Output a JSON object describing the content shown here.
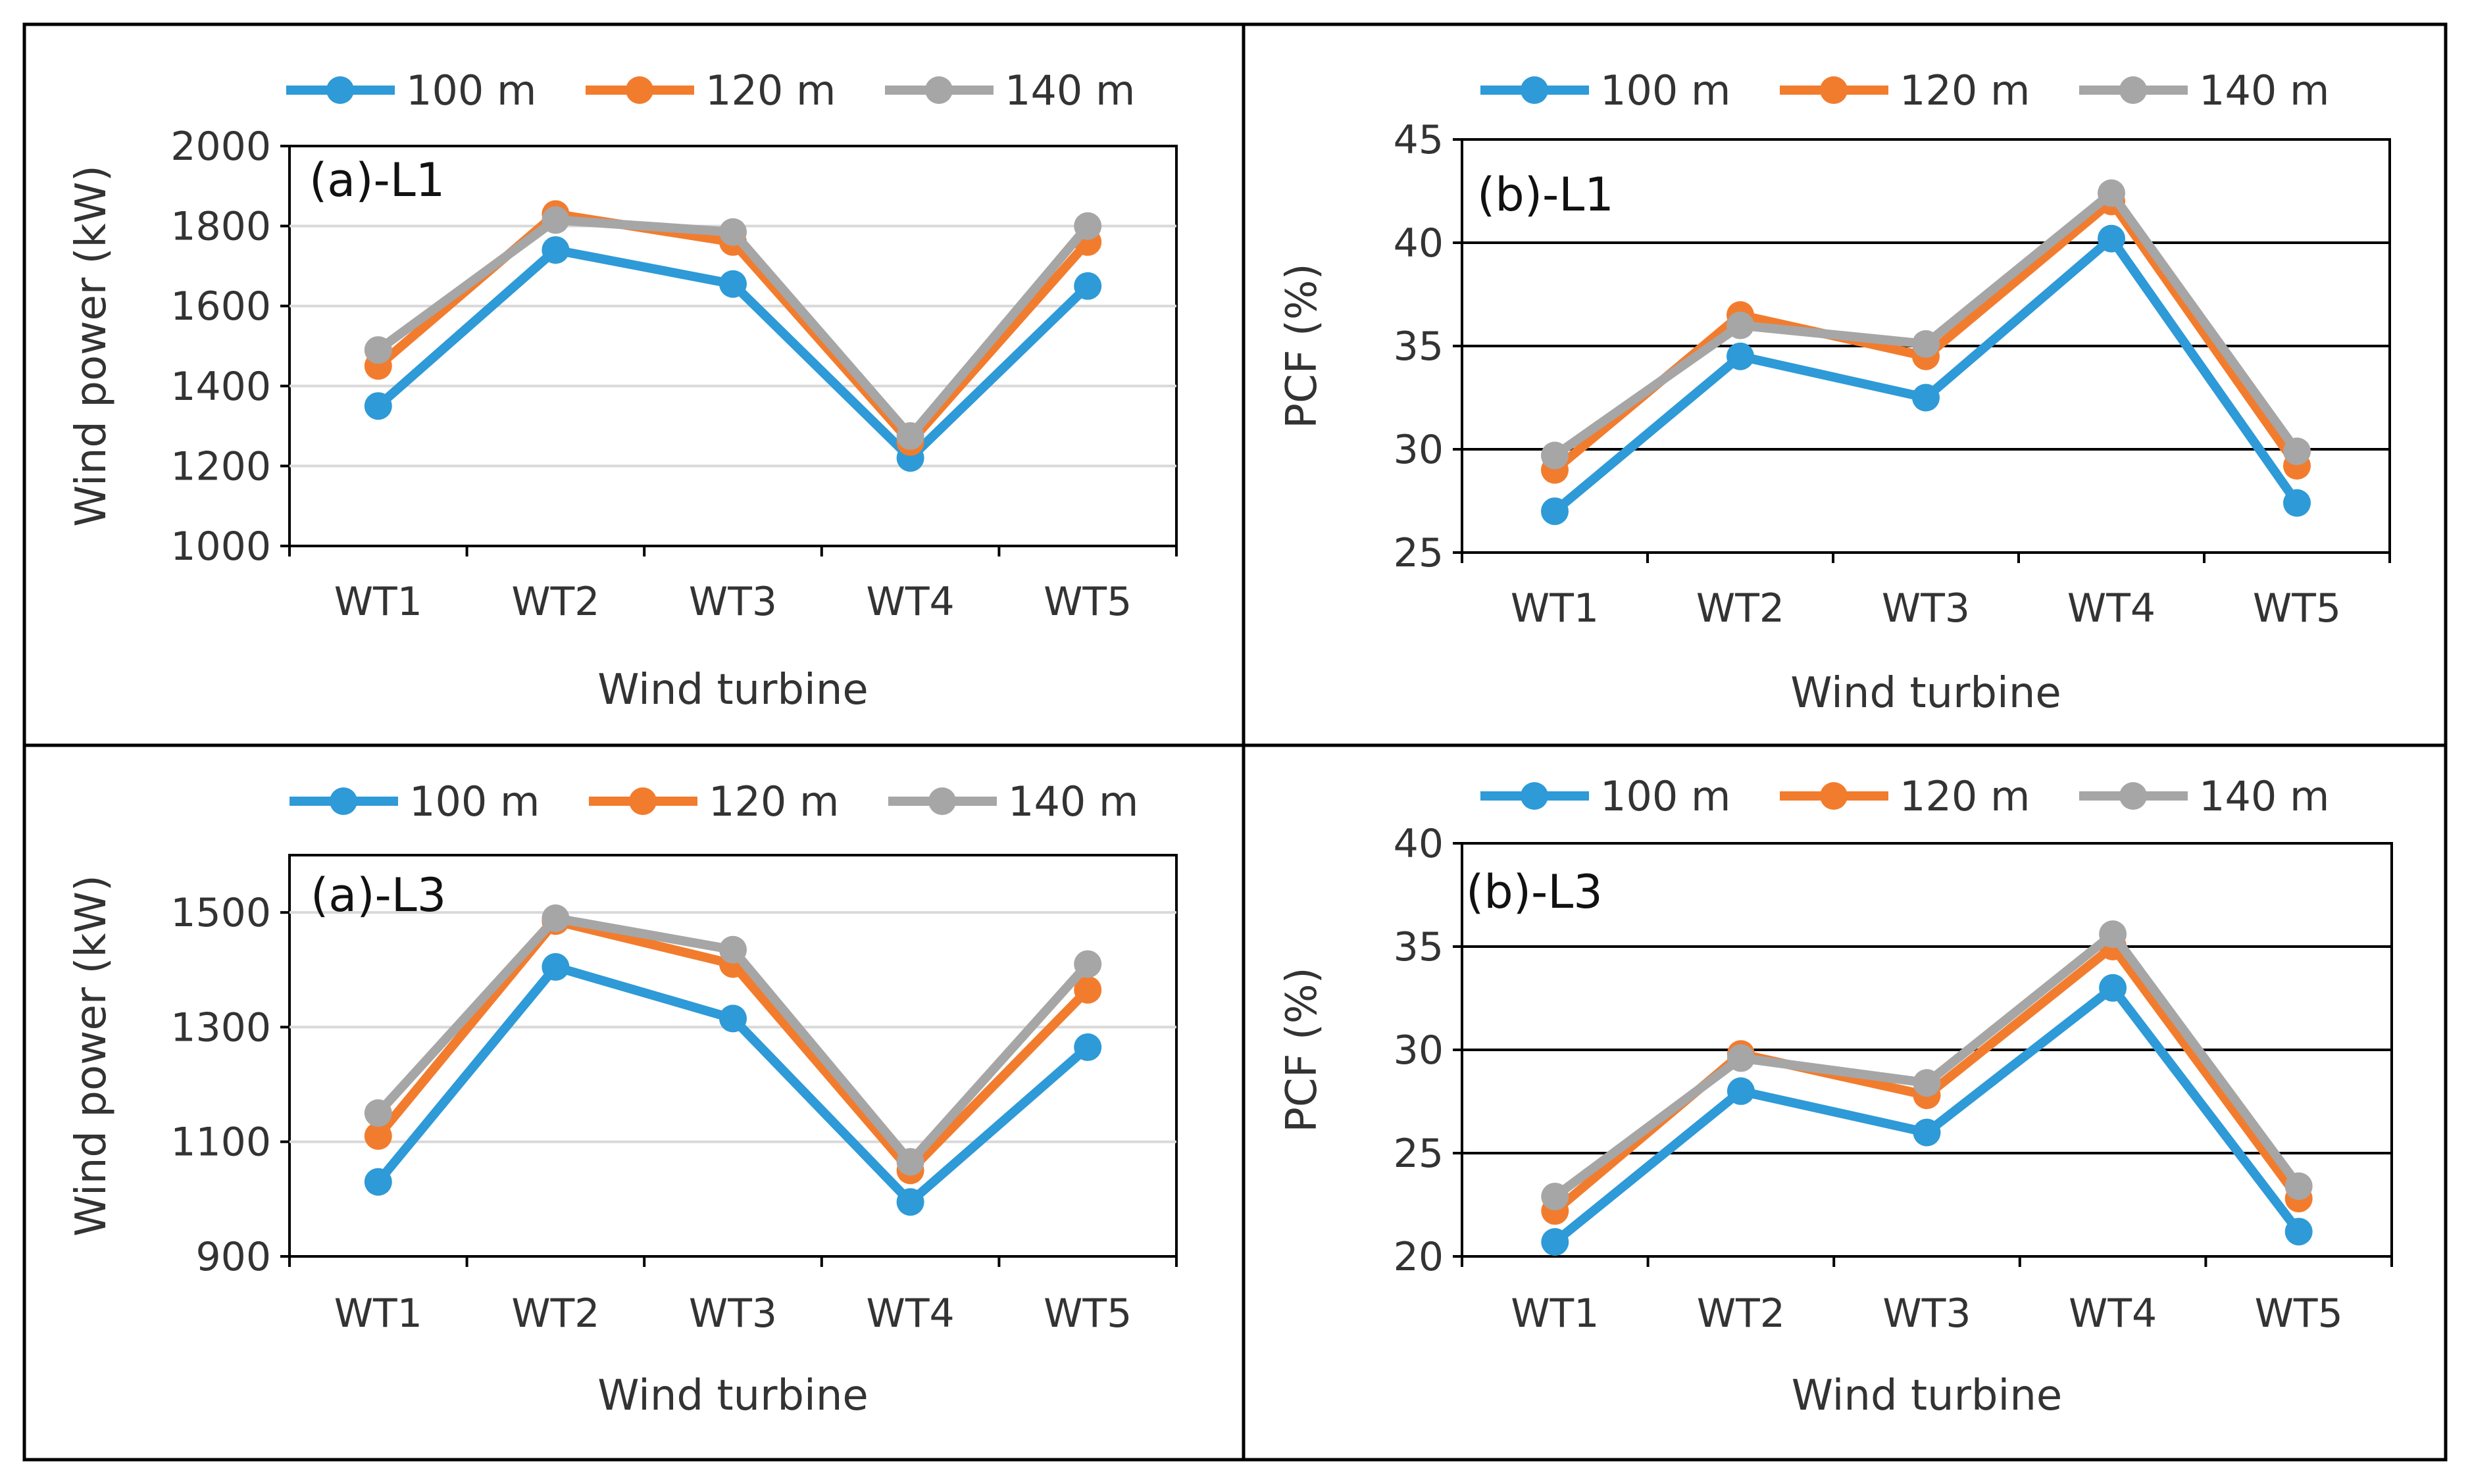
{
  "colors": {
    "s100": "#2E9AD7",
    "s120": "#F27C2E",
    "s140": "#A6A6A6"
  },
  "chart_data": [
    {
      "id": "a-L1",
      "type": "line",
      "panel_label": "(a)-L1",
      "categories": [
        "WT1",
        "WT2",
        "WT3",
        "WT4",
        "WT5"
      ],
      "xlabel": "Wind turbine",
      "ylabel": "Wind power (kW)",
      "ylim": [
        1000,
        2000
      ],
      "yticks": [
        1000,
        1200,
        1400,
        1600,
        1800,
        2000
      ],
      "grid": "silver",
      "legend": "top",
      "series": [
        {
          "name": "100 m",
          "values": [
            1350,
            1740,
            1655,
            1220,
            1650
          ]
        },
        {
          "name": "120 m",
          "values": [
            1450,
            1830,
            1760,
            1260,
            1760
          ]
        },
        {
          "name": "140 m",
          "values": [
            1490,
            1815,
            1785,
            1275,
            1800
          ]
        }
      ]
    },
    {
      "id": "b-L1",
      "type": "line",
      "panel_label": "(b)-L1",
      "categories": [
        "WT1",
        "WT2",
        "WT3",
        "WT4",
        "WT5"
      ],
      "xlabel": "Wind turbine",
      "ylabel": "PCF (%)",
      "ylim": [
        25,
        45
      ],
      "yticks": [
        25,
        30,
        35,
        40,
        45
      ],
      "grid": "black",
      "legend": "top",
      "series": [
        {
          "name": "100 m",
          "values": [
            27.0,
            34.5,
            32.5,
            40.2,
            27.4
          ]
        },
        {
          "name": "120 m",
          "values": [
            29.0,
            36.5,
            34.5,
            42.0,
            29.2
          ]
        },
        {
          "name": "140 m",
          "values": [
            29.7,
            36.0,
            35.1,
            42.4,
            29.9
          ]
        }
      ]
    },
    {
      "id": "a-L3",
      "type": "line",
      "panel_label": "(a)-L3",
      "categories": [
        "WT1",
        "WT2",
        "WT3",
        "WT4",
        "WT5"
      ],
      "xlabel": "Wind turbine",
      "ylabel": "Wind power (kW)",
      "ylim": [
        900,
        1600
      ],
      "yticks": [
        900,
        1100,
        1300,
        1500
      ],
      "grid": "silver",
      "legend": "top",
      "series": [
        {
          "name": "100 m",
          "values": [
            1030,
            1405,
            1315,
            995,
            1265
          ]
        },
        {
          "name": "120 m",
          "values": [
            1110,
            1485,
            1410,
            1050,
            1365
          ]
        },
        {
          "name": "140 m",
          "values": [
            1150,
            1490,
            1435,
            1065,
            1410
          ]
        }
      ]
    },
    {
      "id": "b-L3",
      "type": "line",
      "panel_label": "(b)-L3",
      "categories": [
        "WT1",
        "WT2",
        "WT3",
        "WT4",
        "WT5"
      ],
      "xlabel": "Wind turbine",
      "ylabel": "PCF (%)",
      "ylim": [
        20,
        40
      ],
      "yticks": [
        20,
        25,
        30,
        35,
        40
      ],
      "grid": "black",
      "legend": "top",
      "series": [
        {
          "name": "100 m",
          "values": [
            20.7,
            28.0,
            26.0,
            33.0,
            21.2
          ]
        },
        {
          "name": "120 m",
          "values": [
            22.2,
            29.8,
            27.8,
            35.0,
            22.8
          ]
        },
        {
          "name": "140 m",
          "values": [
            22.9,
            29.6,
            28.4,
            35.6,
            23.4
          ]
        }
      ]
    }
  ]
}
